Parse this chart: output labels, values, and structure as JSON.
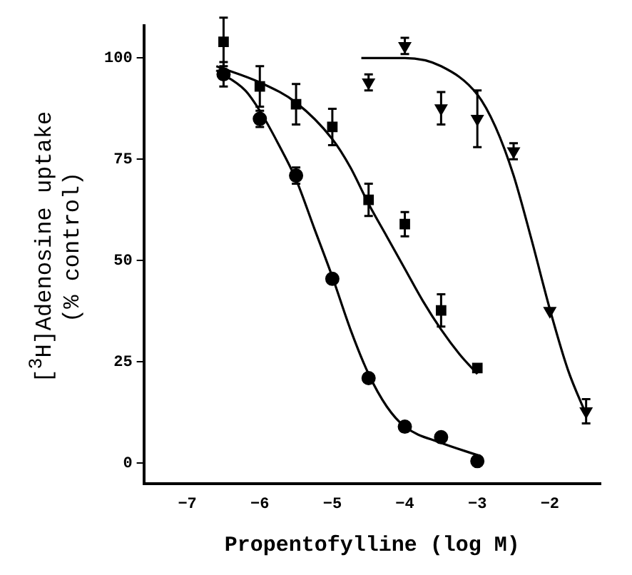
{
  "chart_data": {
    "type": "scatter",
    "xlabel": "Propentofylline (log M)",
    "ylabel": "[$^{3}$H]Adenosine uptake\n(% control)",
    "xlim": [
      -7.6,
      -1.3
    ],
    "ylim": [
      -5,
      108
    ],
    "xticks": [
      -7,
      -6,
      -5,
      -4,
      -3,
      -2
    ],
    "yticks": [
      0,
      25,
      50,
      75,
      100
    ],
    "grid": false,
    "legend": false,
    "series": [
      {
        "marker": "circle",
        "color": "#000000",
        "x": [
          -6.5,
          -6,
          -5.5,
          -5,
          -4.5,
          -4,
          -3.5,
          -3
        ],
        "values": [
          96,
          85,
          71,
          45.5,
          21,
          9,
          6.4,
          0.5
        ],
        "errors": [
          3,
          2,
          2,
          null,
          null,
          null,
          null,
          null
        ]
      },
      {
        "marker": "square",
        "color": "#000000",
        "x": [
          -6.5,
          -6,
          -5.5,
          -5,
          -4.5,
          -4,
          -3.5,
          -3
        ],
        "values": [
          104,
          93,
          88.6,
          83,
          65,
          59,
          37.7,
          23.5
        ],
        "errors": [
          6,
          5,
          5,
          4.5,
          4,
          3,
          4,
          null
        ]
      },
      {
        "marker": "triangle",
        "color": "#000000",
        "x": [
          -4.5,
          -4,
          -3.5,
          -3,
          -2.5,
          -2,
          -1.5
        ],
        "values": [
          94,
          103,
          87.6,
          85,
          77,
          37.6,
          12.8
        ],
        "errors": [
          2,
          2,
          4,
          7,
          2,
          null,
          3
        ]
      },
      {
        "type": "line",
        "marker": "none",
        "color": "#000000",
        "x": [
          -6.6,
          -6.2,
          -6,
          -5.75,
          -5.5,
          -5.25,
          -5,
          -4.75,
          -4.5,
          -4.25,
          -4,
          -3.5,
          -3
        ],
        "values": [
          97,
          92,
          87,
          79,
          70,
          58,
          46,
          33,
          22,
          14,
          9,
          5,
          2
        ]
      },
      {
        "type": "line",
        "marker": "none",
        "color": "#000000",
        "x": [
          -6.6,
          -6,
          -5.5,
          -5,
          -4.75,
          -4.5,
          -4.25,
          -4,
          -3.75,
          -3.5,
          -3.25,
          -3
        ],
        "values": [
          98,
          94,
          89,
          80,
          73,
          64,
          56,
          48,
          40,
          33,
          27,
          22
        ]
      },
      {
        "type": "line",
        "marker": "none",
        "color": "#000000",
        "x": [
          -4.6,
          -4,
          -3.5,
          -3,
          -2.75,
          -2.5,
          -2.25,
          -2,
          -1.75,
          -1.5
        ],
        "values": [
          100,
          100,
          98,
          91,
          83,
          71,
          55,
          38,
          23,
          12
        ]
      }
    ]
  }
}
